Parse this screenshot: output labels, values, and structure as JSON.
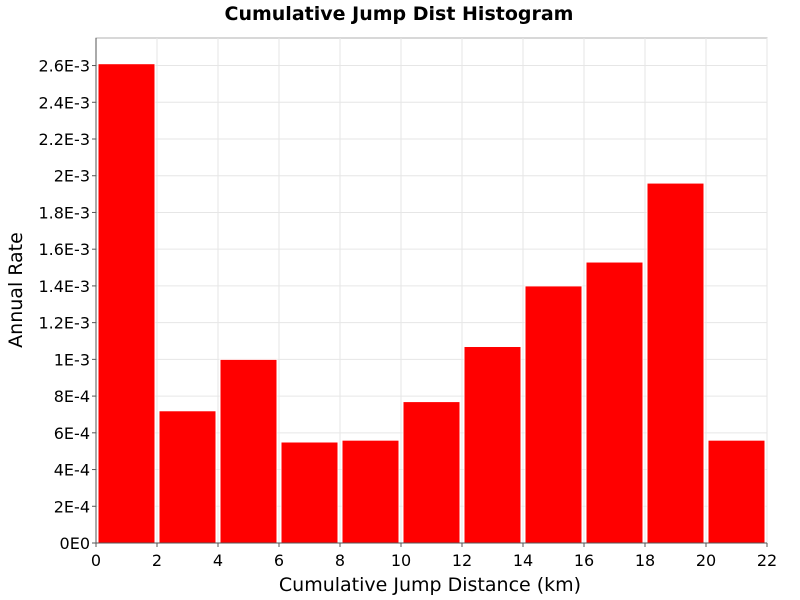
{
  "chart_data": {
    "type": "bar",
    "title": "Cumulative Jump Dist Histogram",
    "xlabel": "Cumulative Jump Distance (km)",
    "ylabel": "Annual Rate",
    "xlim": [
      0,
      22
    ],
    "ylim": [
      0,
      0.00275
    ],
    "x_ticks": [
      0,
      2,
      4,
      6,
      8,
      10,
      12,
      14,
      16,
      18,
      20,
      22
    ],
    "x_tick_labels": [
      "0",
      "2",
      "4",
      "6",
      "8",
      "10",
      "12",
      "14",
      "16",
      "18",
      "20",
      "22"
    ],
    "y_ticks": [
      0,
      0.0002,
      0.0004,
      0.0006,
      0.0008,
      0.001,
      0.0012,
      0.0014,
      0.0016,
      0.0018,
      0.002,
      0.0022,
      0.0024,
      0.0026
    ],
    "y_tick_labels": [
      "0E0",
      "2E-4",
      "4E-4",
      "6E-4",
      "8E-4",
      "1E-3",
      "1.2E-3",
      "1.4E-3",
      "1.6E-3",
      "1.8E-3",
      "2E-3",
      "2.2E-3",
      "2.4E-3",
      "2.6E-3"
    ],
    "bin_width": 2,
    "bins": [
      {
        "x_start": 0,
        "x_end": 2,
        "value": 0.00261
      },
      {
        "x_start": 2,
        "x_end": 4,
        "value": 0.00072
      },
      {
        "x_start": 4,
        "x_end": 6,
        "value": 0.001
      },
      {
        "x_start": 6,
        "x_end": 8,
        "value": 0.00055
      },
      {
        "x_start": 8,
        "x_end": 10,
        "value": 0.00056
      },
      {
        "x_start": 10,
        "x_end": 12,
        "value": 0.00077
      },
      {
        "x_start": 12,
        "x_end": 14,
        "value": 0.00107
      },
      {
        "x_start": 14,
        "x_end": 16,
        "value": 0.0014
      },
      {
        "x_start": 16,
        "x_end": 18,
        "value": 0.00153
      },
      {
        "x_start": 18,
        "x_end": 20,
        "value": 0.00196
      },
      {
        "x_start": 20,
        "x_end": 22,
        "value": 0.00056
      }
    ],
    "bar_color": "#ff0000",
    "grid": true,
    "legend": false
  }
}
